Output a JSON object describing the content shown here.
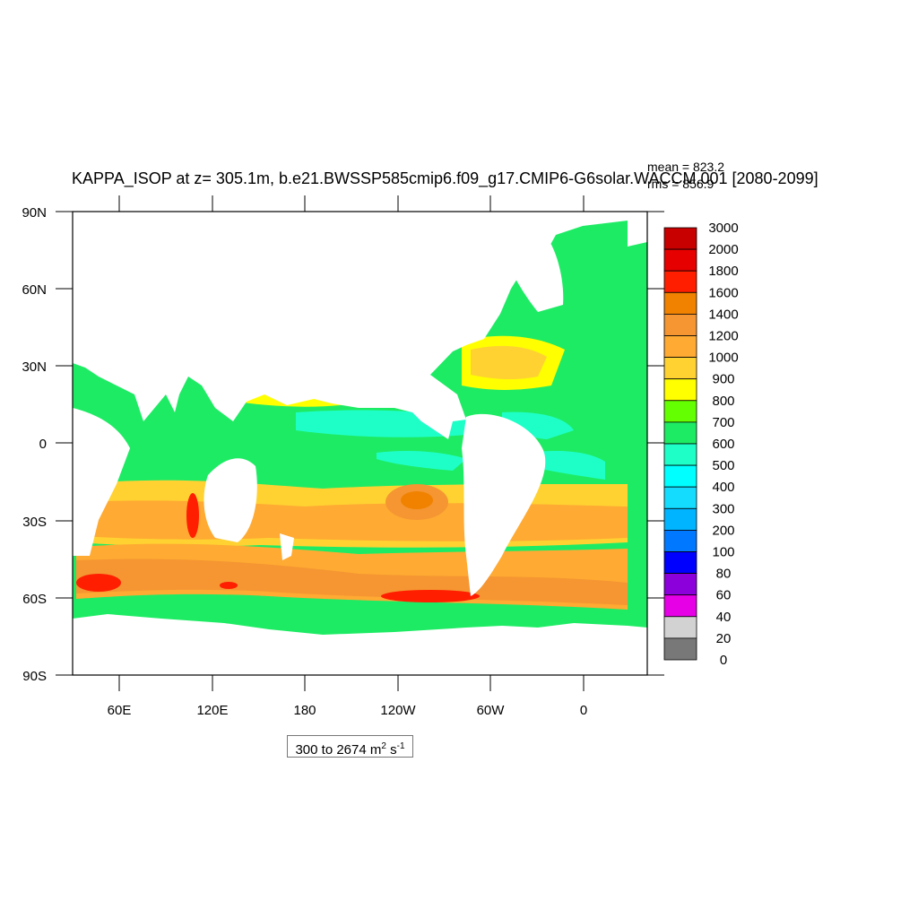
{
  "title": "KAPPA_ISOP at z= 305.1m, b.e21.BWSSP585cmip6.f09_g17.CMIP6-G6solar.WACCM.001 [2080-2099]",
  "stats": {
    "mean": "mean = 823.2",
    "rms": "rms = 856.9"
  },
  "range": {
    "value": "300 to 2674",
    "unit_main": "m",
    "unit_exp": "2",
    "unit_main2": "s",
    "unit_exp2": "-1"
  },
  "axes": {
    "y_ticks": [
      "90N",
      "60N",
      "30N",
      "0",
      "30S",
      "60S",
      "90S"
    ],
    "x_ticks": [
      "60E",
      "120E",
      "180",
      "120W",
      "60W",
      "0"
    ]
  },
  "colorbar": {
    "labels": [
      "3000",
      "2000",
      "1800",
      "1600",
      "1400",
      "1200",
      "1000",
      "900",
      "800",
      "700",
      "600",
      "500",
      "400",
      "300",
      "200",
      "100",
      "80",
      "60",
      "40",
      "20",
      "0"
    ],
    "colors": [
      "#c80000",
      "#e60000",
      "#ff1e00",
      "#f08200",
      "#f59632",
      "#ffaa32",
      "#ffd232",
      "#ffff00",
      "#64ff00",
      "#1eeb64",
      "#1effc8",
      "#00ffff",
      "#14dcff",
      "#00b4ff",
      "#0078ff",
      "#0000ff",
      "#8c00dc",
      "#e600e6",
      "#d2d2d2",
      "#787878"
    ]
  },
  "legend_colors": {
    "land": "#ffffff",
    "ocean_base": "#1eeb64"
  }
}
